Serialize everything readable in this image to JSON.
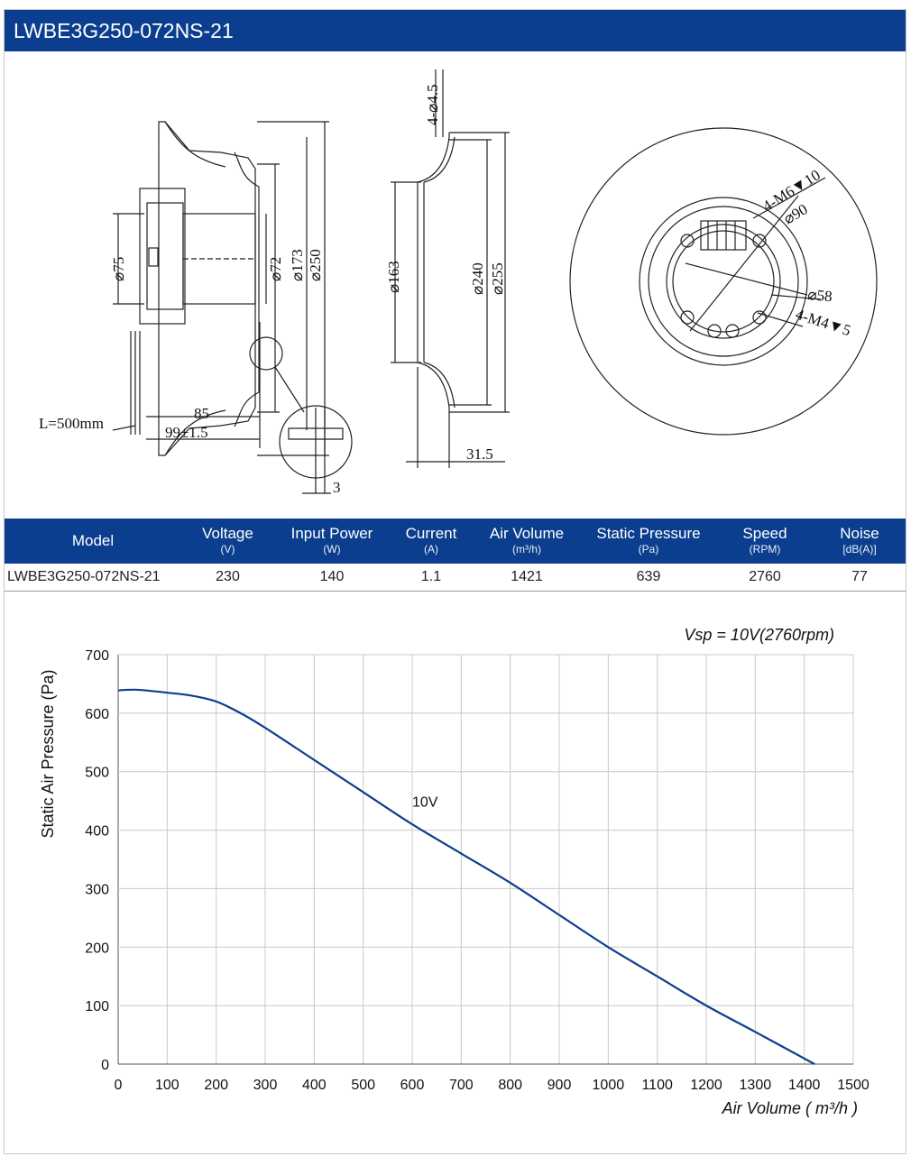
{
  "title": "LWBE3G250-072NS-21",
  "drawing_labels": {
    "side_d75": "⌀75",
    "side_d72": "⌀72",
    "side_d173": "⌀173",
    "side_d250": "⌀250",
    "side_85": "85",
    "side_99": "99±1.5",
    "side_cable": "L=500mm",
    "side_detail_3": "3",
    "ring_holes": "4-⌀4.5",
    "ring_d163": "⌀163",
    "ring_d240": "⌀240",
    "ring_d255": "⌀255",
    "ring_31_5": "31.5",
    "front_m6": "4-M6▼10",
    "front_d90": "⌀90",
    "front_d58": "⌀58",
    "front_m4": "4-M4▼5"
  },
  "spec_table": {
    "headers": [
      {
        "label": "Model",
        "unit": ""
      },
      {
        "label": "Voltage",
        "unit": "(V)"
      },
      {
        "label": "Input Power",
        "unit": "(W)"
      },
      {
        "label": "Current",
        "unit": "(A)"
      },
      {
        "label": "Air Volume",
        "unit": "(m³/h)"
      },
      {
        "label": "Static Pressure",
        "unit": "(Pa)"
      },
      {
        "label": "Speed",
        "unit": "(RPM)"
      },
      {
        "label": "Noise",
        "unit": "[dB(A)]"
      }
    ],
    "rows": [
      [
        "LWBE3G250-072NS-21",
        "230",
        "140",
        "1.1",
        "1421",
        "639",
        "2760",
        "77"
      ]
    ]
  },
  "chart_data": {
    "type": "line",
    "annotation": "Vsp = 10V(2760rpm)",
    "xlabel": "Air Volume ( m³/h )",
    "ylabel": "Static Air Pressure  (Pa)",
    "xlim": [
      0,
      1500
    ],
    "ylim": [
      0,
      700
    ],
    "xticks": [
      0,
      100,
      200,
      300,
      400,
      500,
      600,
      700,
      800,
      900,
      1000,
      1100,
      1200,
      1300,
      1400,
      1500
    ],
    "yticks": [
      0,
      100,
      200,
      300,
      400,
      500,
      600,
      700
    ],
    "grid": true,
    "line_color": "#0b3e8e",
    "series": [
      {
        "name": "10V",
        "x": [
          0,
          40,
          100,
          150,
          200,
          250,
          300,
          400,
          500,
          600,
          700,
          800,
          900,
          1000,
          1100,
          1200,
          1300,
          1421
        ],
        "y": [
          639,
          640,
          635,
          630,
          620,
          600,
          575,
          520,
          465,
          410,
          360,
          310,
          255,
          200,
          150,
          100,
          55,
          0
        ]
      }
    ],
    "series_label_point": {
      "x": 600,
      "y": 440
    }
  }
}
